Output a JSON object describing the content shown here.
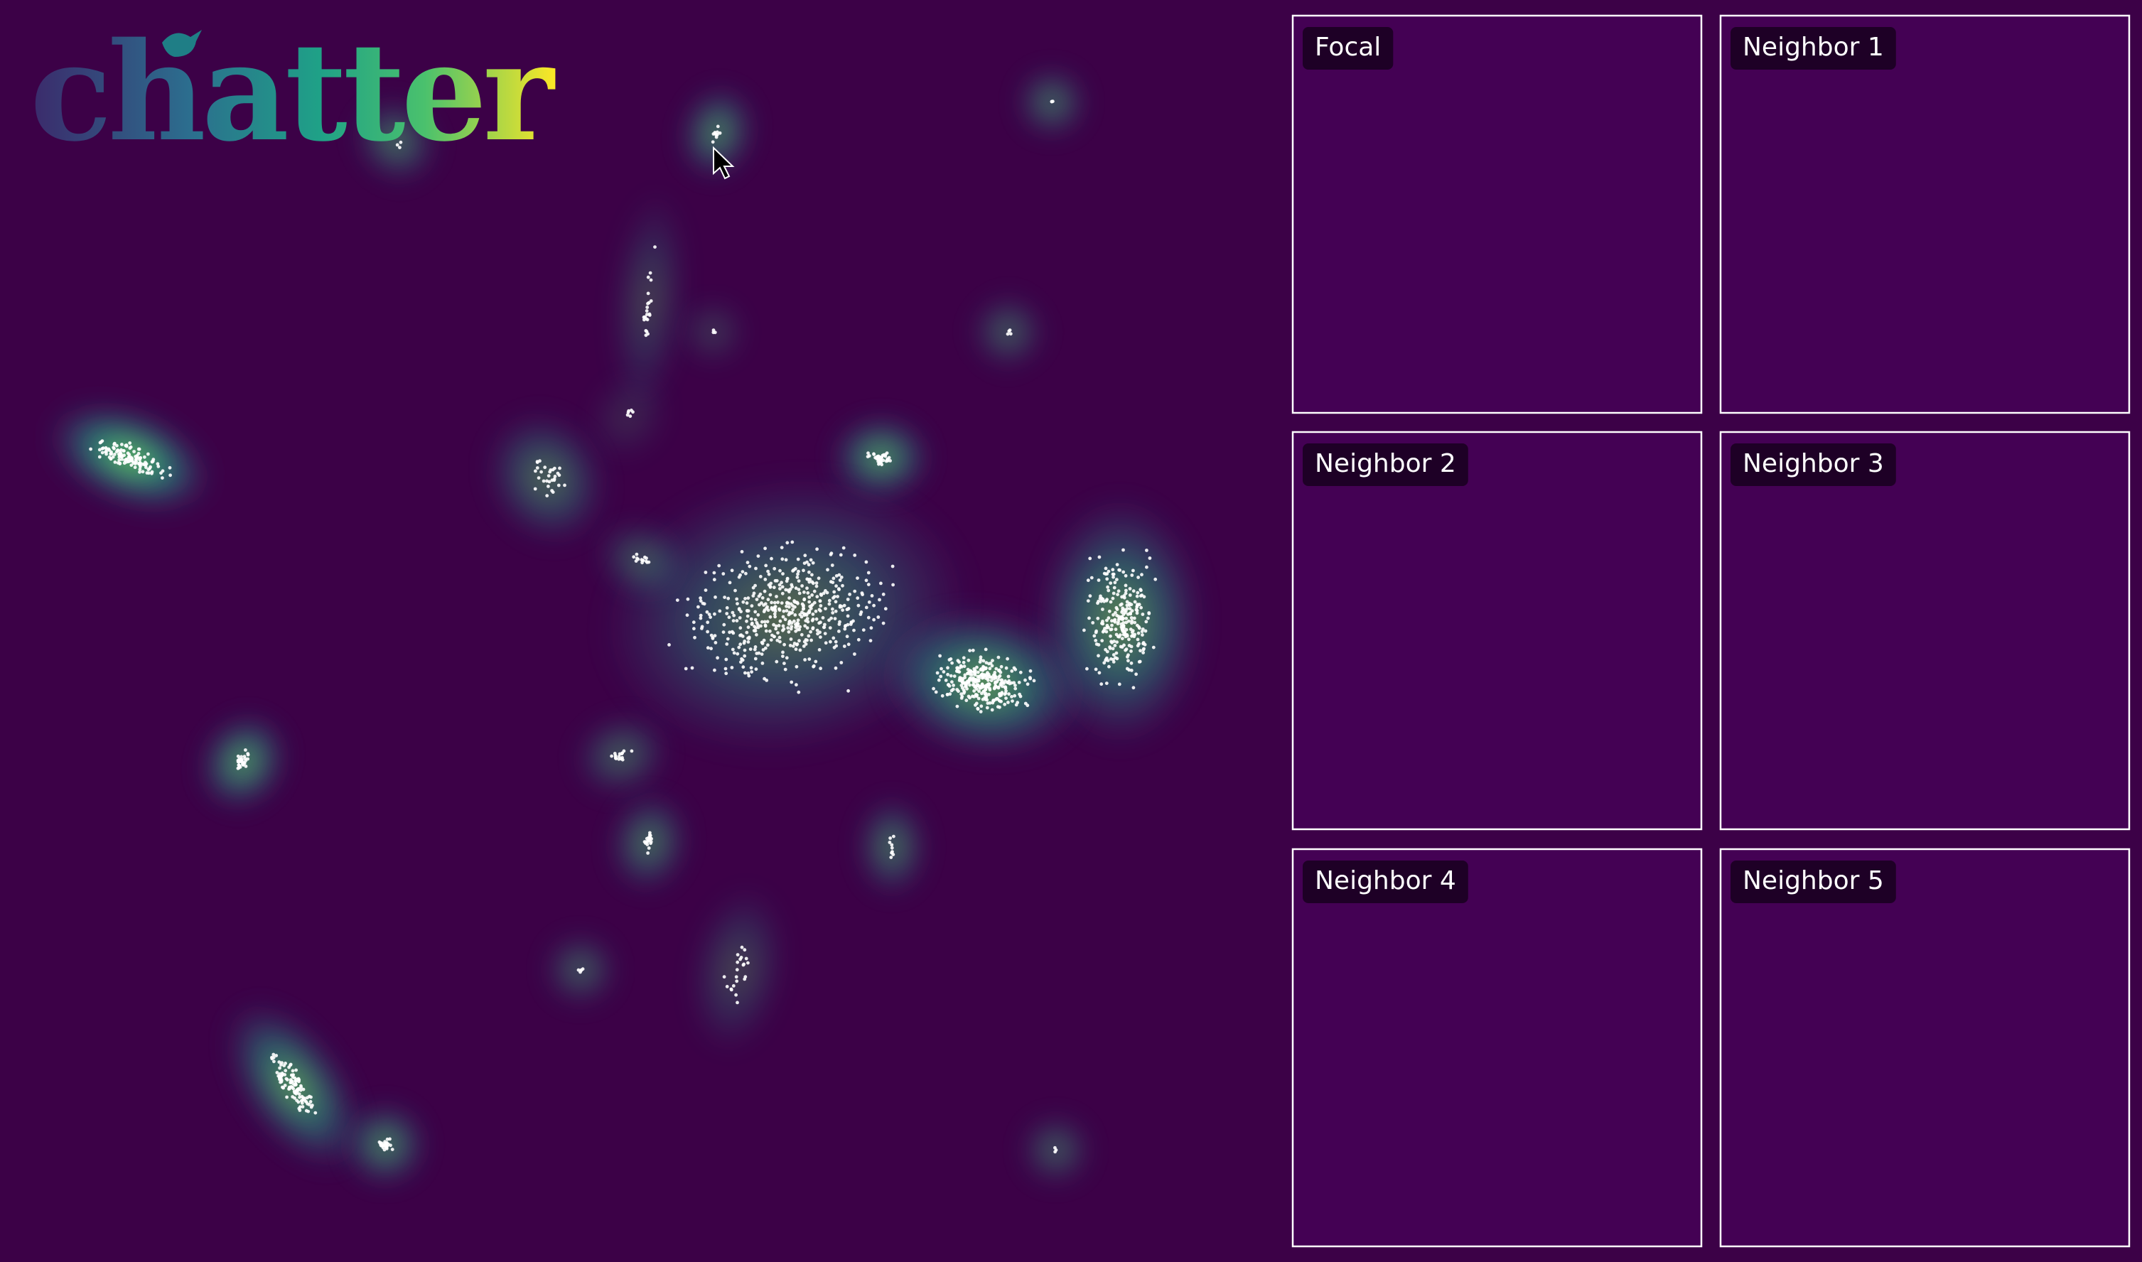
{
  "logo": {
    "text": "chatter"
  },
  "panels": [
    {
      "label": "Focal"
    },
    {
      "label": "Neighbor 1"
    },
    {
      "label": "Neighbor 2"
    },
    {
      "label": "Neighbor 3"
    },
    {
      "label": "Neighbor 4"
    },
    {
      "label": "Neighbor 5"
    }
  ]
}
